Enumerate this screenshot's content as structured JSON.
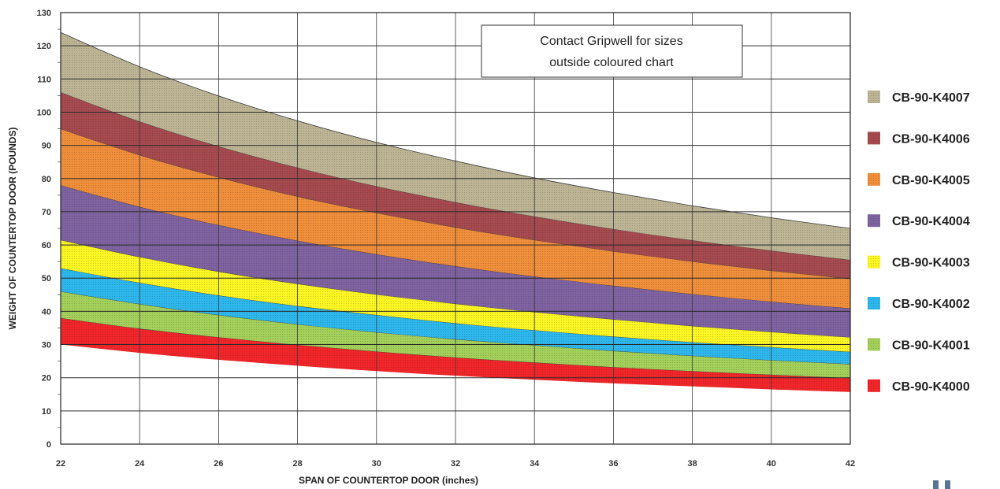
{
  "chart_data": {
    "type": "area",
    "title": "",
    "xlabel": "SPAN OF COUNTERTOP DOOR (inches)",
    "ylabel": "WEIGHT OF COUNTERTOP DOOR (POUNDS)",
    "xlim": [
      22,
      42
    ],
    "ylim": [
      0,
      130
    ],
    "x_ticks": [
      22,
      24,
      26,
      28,
      30,
      32,
      34,
      36,
      38,
      40,
      42
    ],
    "y_ticks": [
      0,
      10,
      20,
      30,
      40,
      50,
      60,
      70,
      80,
      90,
      100,
      110,
      120,
      130
    ],
    "grid": true,
    "legend_position": "right",
    "annotation": {
      "line1": "Contact Gripwell for sizes",
      "line2": "outside coloured chart"
    },
    "x": [
      22,
      24,
      26,
      28,
      30,
      32,
      34,
      36,
      38,
      40,
      42
    ],
    "series": [
      {
        "name": "CB-90-K4000",
        "color": "#f0262a",
        "lower": [
          30,
          27.5,
          25.4,
          23.6,
          22.0,
          20.6,
          19.4,
          18.3,
          17.4,
          16.5,
          15.7
        ],
        "upper": [
          38,
          34.8,
          32.2,
          29.9,
          27.9,
          26.1,
          24.6,
          23.2,
          22.0,
          20.9,
          19.9
        ]
      },
      {
        "name": "CB-90-K4001",
        "color": "#a3d05a",
        "lower": [
          38,
          34.8,
          32.2,
          29.9,
          27.9,
          26.1,
          24.6,
          23.2,
          22.0,
          20.9,
          19.9
        ],
        "upper": [
          46,
          42.2,
          38.9,
          36.1,
          33.7,
          31.6,
          29.8,
          28.1,
          26.6,
          25.3,
          24.1
        ]
      },
      {
        "name": "CB-90-K4002",
        "color": "#2db7ec",
        "lower": [
          46,
          42.2,
          38.9,
          36.1,
          33.7,
          31.6,
          29.8,
          28.1,
          26.6,
          25.3,
          24.1
        ],
        "upper": [
          53,
          48.6,
          44.8,
          41.6,
          38.9,
          36.4,
          34.3,
          32.4,
          30.7,
          29.2,
          27.8
        ]
      },
      {
        "name": "CB-90-K4003",
        "color": "#fbf524",
        "lower": [
          53,
          48.6,
          44.8,
          41.6,
          38.9,
          36.4,
          34.3,
          32.4,
          30.7,
          29.2,
          27.8
        ],
        "upper": [
          61.5,
          56.4,
          52.0,
          48.3,
          45.1,
          42.3,
          39.8,
          37.6,
          35.6,
          33.8,
          32.2
        ]
      },
      {
        "name": "CB-90-K4004",
        "color": "#7f63a0",
        "lower": [
          61.5,
          56.4,
          52.0,
          48.3,
          45.1,
          42.3,
          39.8,
          37.6,
          35.6,
          33.8,
          32.2
        ],
        "upper": [
          78,
          71.5,
          66.0,
          61.3,
          57.2,
          53.6,
          50.5,
          47.7,
          45.2,
          42.9,
          40.9
        ]
      },
      {
        "name": "CB-90-K4005",
        "color": "#ef8e3b",
        "lower": [
          78,
          71.5,
          66.0,
          61.3,
          57.2,
          53.6,
          50.5,
          47.7,
          45.2,
          42.9,
          40.9
        ],
        "upper": [
          95,
          87.1,
          80.4,
          74.6,
          69.7,
          65.3,
          61.5,
          58.1,
          55.0,
          52.3,
          49.8
        ]
      },
      {
        "name": "CB-90-K4006",
        "color": "#a54a4f",
        "lower": [
          95,
          87.1,
          80.4,
          74.6,
          69.7,
          65.3,
          61.5,
          58.1,
          55.0,
          52.3,
          49.8
        ],
        "upper": [
          106,
          97.2,
          89.7,
          83.3,
          77.7,
          72.9,
          68.6,
          64.8,
          61.4,
          58.3,
          55.5
        ]
      },
      {
        "name": "CB-90-K4007",
        "color": "#bdb495",
        "lower": [
          106,
          97.2,
          89.7,
          83.3,
          77.7,
          72.9,
          68.6,
          64.8,
          61.4,
          58.3,
          55.5
        ],
        "upper": [
          124,
          113.7,
          104.9,
          97.4,
          90.9,
          85.3,
          80.2,
          75.8,
          71.8,
          68.2,
          65.0
        ]
      }
    ]
  }
}
